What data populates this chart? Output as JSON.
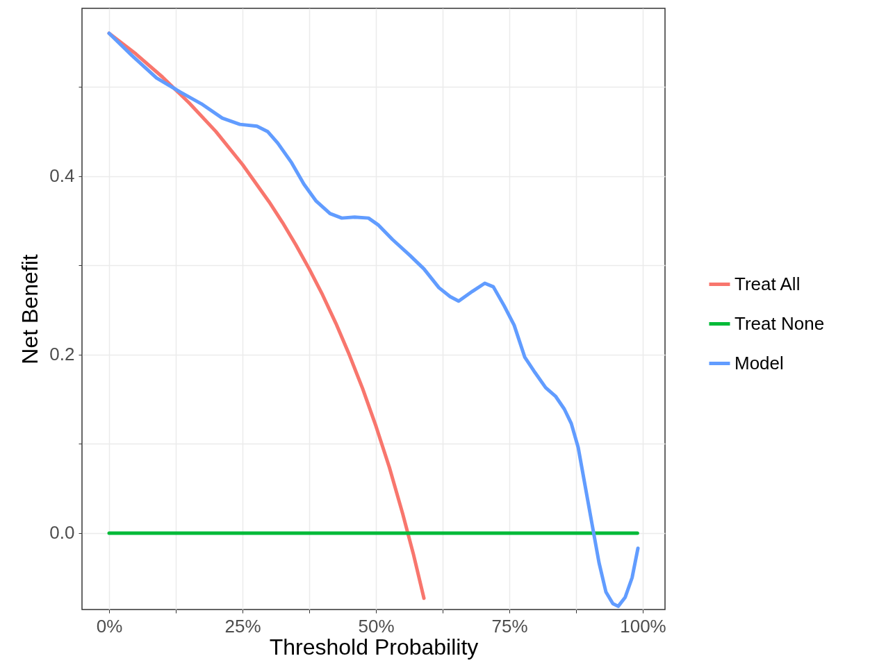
{
  "chart_data": {
    "type": "line",
    "xlabel": "Threshold Probability",
    "ylabel": "Net Benefit",
    "xlim": [
      -0.0508,
      1.0417
    ],
    "ylim": [
      -0.0856,
      0.588
    ],
    "xticks": [
      {
        "value": 0,
        "label": "0%"
      },
      {
        "value": 0.125,
        "label": null
      },
      {
        "value": 0.25,
        "label": "25%"
      },
      {
        "value": 0.375,
        "label": null
      },
      {
        "value": 0.5,
        "label": "50%"
      },
      {
        "value": 0.625,
        "label": null
      },
      {
        "value": 0.75,
        "label": "75%"
      },
      {
        "value": 0.875,
        "label": null
      },
      {
        "value": 1,
        "label": "100%"
      }
    ],
    "yticks": [
      {
        "value": 0,
        "label": "0.0"
      },
      {
        "value": 0.1,
        "label": null
      },
      {
        "value": 0.2,
        "label": "0.2"
      },
      {
        "value": 0.3,
        "label": null
      },
      {
        "value": 0.4,
        "label": "0.4"
      },
      {
        "value": 0.5,
        "label": null
      }
    ],
    "grid": true,
    "legend": "right",
    "line_style": "solid",
    "marker": "none",
    "series": [
      {
        "name": "Treat All",
        "color": "#f8766d",
        "x": [
          0,
          0.05,
          0.1,
          0.15,
          0.2,
          0.25,
          0.3,
          0.325,
          0.35,
          0.375,
          0.4,
          0.425,
          0.45,
          0.475,
          0.5,
          0.525,
          0.55,
          0.57,
          0.58,
          0.59
        ],
        "values": [
          0.56,
          0.537,
          0.511,
          0.482,
          0.45,
          0.413,
          0.371,
          0.348,
          0.323,
          0.296,
          0.267,
          0.235,
          0.2,
          0.162,
          0.12,
          0.074,
          0.022,
          -0.023,
          -0.048,
          -0.073
        ]
      },
      {
        "name": "Treat None",
        "color": "#00ba38",
        "x": [
          0,
          0.99
        ],
        "values": [
          0,
          0
        ]
      },
      {
        "name": "Model",
        "color": "#619cff",
        "x": [
          0,
          0.043,
          0.089,
          0.134,
          0.173,
          0.212,
          0.245,
          0.277,
          0.297,
          0.316,
          0.342,
          0.365,
          0.388,
          0.414,
          0.436,
          0.46,
          0.486,
          0.505,
          0.531,
          0.564,
          0.59,
          0.618,
          0.639,
          0.655,
          0.681,
          0.704,
          0.72,
          0.74,
          0.759,
          0.779,
          0.798,
          0.818,
          0.837,
          0.853,
          0.866,
          0.879,
          0.892,
          0.905,
          0.918,
          0.931,
          0.944,
          0.954,
          0.967,
          0.98,
          0.991
        ],
        "values": [
          0.56,
          0.535,
          0.51,
          0.494,
          0.481,
          0.465,
          0.458,
          0.456,
          0.45,
          0.437,
          0.415,
          0.391,
          0.372,
          0.358,
          0.353,
          0.354,
          0.353,
          0.345,
          0.329,
          0.311,
          0.296,
          0.275,
          0.265,
          0.26,
          0.271,
          0.28,
          0.276,
          0.255,
          0.233,
          0.197,
          0.18,
          0.163,
          0.153,
          0.139,
          0.123,
          0.096,
          0.053,
          0.01,
          -0.033,
          -0.066,
          -0.079,
          -0.082,
          -0.072,
          -0.05,
          -0.017
        ]
      }
    ]
  }
}
